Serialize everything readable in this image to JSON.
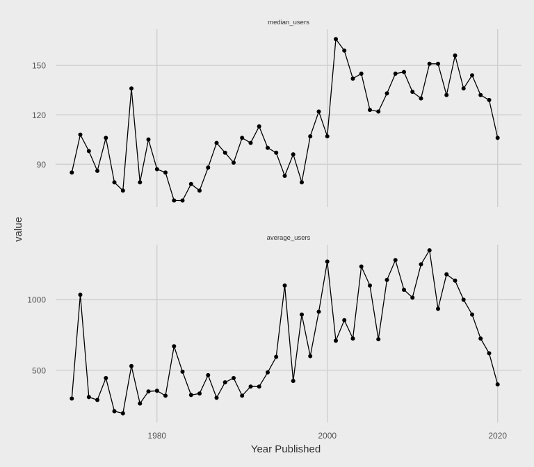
{
  "chart_data": {
    "type": "line",
    "facet": "vertical",
    "xlabel": "Year Published",
    "ylabel": "value",
    "x_ticks": [
      1980,
      2000,
      2020
    ],
    "xlim": [
      1968.1,
      2022.8
    ],
    "grid": true,
    "colors": {
      "background": "#ececec",
      "grid": "#cfcfcf",
      "line": "#000000"
    },
    "x": [
      1970,
      1971,
      1972,
      1973,
      1974,
      1975,
      1976,
      1977,
      1978,
      1979,
      1980,
      1981,
      1982,
      1983,
      1984,
      1985,
      1986,
      1987,
      1988,
      1989,
      1990,
      1991,
      1992,
      1993,
      1994,
      1995,
      1996,
      1997,
      1998,
      1999,
      2000,
      2001,
      2002,
      2003,
      2004,
      2005,
      2006,
      2007,
      2008,
      2009,
      2010,
      2011,
      2012,
      2013,
      2014,
      2015,
      2016,
      2017,
      2018,
      2019,
      2020
    ],
    "panels": [
      {
        "label": "median_users",
        "ylim": [
          64,
          172
        ],
        "y_ticks": [
          90,
          120,
          150
        ],
        "values": [
          85,
          108,
          98,
          86,
          106,
          79,
          74,
          136,
          79,
          105,
          87,
          85,
          68,
          68,
          78,
          74,
          88,
          103,
          97,
          91,
          106,
          103,
          113,
          100,
          97,
          83,
          96,
          79,
          107,
          122,
          107,
          166,
          159,
          142,
          145,
          123,
          122,
          133,
          145,
          146,
          134,
          130,
          151,
          151,
          132,
          156,
          136,
          144,
          132,
          129,
          106
        ]
      },
      {
        "label": "average_users",
        "ylim": [
          130,
          1390
        ],
        "y_ticks": [
          500,
          1000
        ],
        "values": [
          300,
          1035,
          310,
          290,
          445,
          210,
          195,
          530,
          265,
          350,
          355,
          320,
          670,
          490,
          325,
          335,
          465,
          305,
          415,
          445,
          320,
          385,
          385,
          485,
          595,
          1100,
          425,
          895,
          600,
          915,
          1270,
          710,
          855,
          725,
          1235,
          1100,
          720,
          1140,
          1280,
          1070,
          1015,
          1250,
          1350,
          935,
          1180,
          1135,
          1000,
          895,
          725,
          620,
          400
        ]
      }
    ]
  }
}
